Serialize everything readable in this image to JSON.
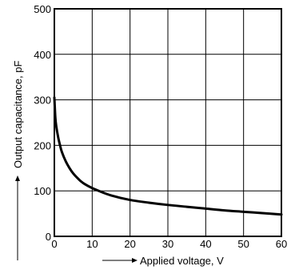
{
  "chart_data": {
    "type": "line",
    "title": "",
    "xlabel": "Applied voltage, V",
    "ylabel": "Output capacitance, pF",
    "xlim": [
      0,
      60
    ],
    "ylim": [
      0,
      500
    ],
    "xticks": [
      0,
      10,
      20,
      30,
      40,
      50,
      60
    ],
    "yticks": [
      0,
      100,
      200,
      300,
      400,
      500
    ],
    "grid": true,
    "legend": "none",
    "series": [
      {
        "color": "#000000",
        "x": [
          0,
          0.25,
          0.5,
          1,
          1.5,
          2,
          3,
          4,
          5,
          6,
          7,
          8,
          10,
          12,
          15,
          20,
          25,
          30,
          35,
          40,
          45,
          50,
          55,
          60
        ],
        "y": [
          305,
          262,
          242,
          218,
          200,
          185,
          165,
          150,
          138,
          129,
          121,
          115,
          106,
          99,
          90,
          80,
          74,
          69,
          65,
          61,
          57,
          54,
          51,
          48
        ]
      }
    ]
  }
}
